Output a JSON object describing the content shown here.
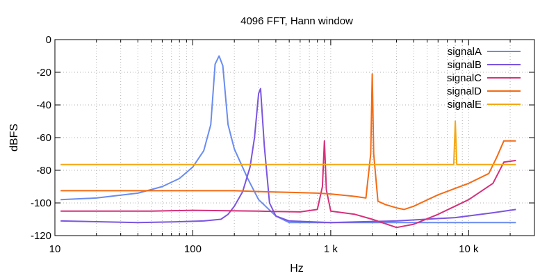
{
  "chart_data": {
    "type": "line",
    "title": "4096 FFT, Hann window",
    "xlabel": "Hz",
    "ylabel": "dBFS",
    "xscale": "log",
    "xlim": [
      10,
      30000
    ],
    "ylim": [
      -120,
      0
    ],
    "xticks": [
      {
        "value": 10,
        "label": "10"
      },
      {
        "value": 100,
        "label": "100"
      },
      {
        "value": 1000,
        "label": "1 k"
      },
      {
        "value": 10000,
        "label": "10 k"
      }
    ],
    "yticks": [
      {
        "value": 0,
        "label": "0"
      },
      {
        "value": -20,
        "label": "-20"
      },
      {
        "value": -40,
        "label": "-40"
      },
      {
        "value": -60,
        "label": "-60"
      },
      {
        "value": -80,
        "label": "-80"
      },
      {
        "value": -100,
        "label": "-100"
      },
      {
        "value": -120,
        "label": "-120"
      }
    ],
    "grid": true,
    "legend_position": "top-right",
    "series": [
      {
        "name": "signalA",
        "color": "#6a8cf0",
        "x": [
          11,
          20,
          40,
          60,
          80,
          100,
          120,
          135,
          145,
          155,
          165,
          180,
          200,
          250,
          300,
          400,
          500,
          1000,
          3000,
          10000,
          22000
        ],
        "y": [
          -98,
          -97,
          -94,
          -90,
          -85,
          -78,
          -68,
          -52,
          -15,
          -10,
          -16,
          -52,
          -67,
          -85,
          -98,
          -108,
          -112,
          -112,
          -112,
          -112,
          -112
        ]
      },
      {
        "name": "signalB",
        "color": "#7b55e0",
        "x": [
          11,
          20,
          40,
          80,
          120,
          160,
          180,
          200,
          230,
          260,
          280,
          300,
          310,
          330,
          360,
          400,
          500,
          1000,
          3000,
          8000,
          15000,
          22000
        ],
        "y": [
          -111,
          -111.5,
          -112,
          -111.5,
          -111,
          -110,
          -107,
          -102,
          -93,
          -78,
          -60,
          -33,
          -30,
          -65,
          -100,
          -108,
          -111,
          -112,
          -111,
          -109,
          -106,
          -104
        ]
      },
      {
        "name": "signalC",
        "color": "#d6307a",
        "x": [
          11,
          50,
          100,
          300,
          600,
          800,
          870,
          900,
          930,
          1000,
          1500,
          2000,
          3000,
          4000,
          6000,
          10000,
          15000,
          18000,
          22000
        ],
        "y": [
          -105,
          -105,
          -104.5,
          -105,
          -105.5,
          -104,
          -90,
          -62,
          -92,
          -105,
          -107,
          -110,
          -115,
          -113,
          -107,
          -98,
          -88,
          -75,
          -74
        ]
      },
      {
        "name": "signalD",
        "color": "#f46b14",
        "x": [
          11,
          50,
          100,
          200,
          300,
          500,
          800,
          1000,
          1500,
          1800,
          1950,
          2000,
          2050,
          2200,
          2500,
          3000,
          3400,
          4000,
          6000,
          10000,
          14000,
          16000,
          18000,
          22000
        ],
        "y": [
          -92.5,
          -92.5,
          -92.5,
          -92.5,
          -93,
          -93.5,
          -94,
          -94.5,
          -96,
          -97,
          -70,
          -21,
          -70,
          -99,
          -101,
          -103,
          -104,
          -102,
          -95,
          -88,
          -82,
          -72,
          -62,
          -62
        ]
      },
      {
        "name": "signalE",
        "color": "#f4a714",
        "x": [
          11,
          100,
          1000,
          5000,
          7800,
          8000,
          8200,
          10000,
          22000
        ],
        "y": [
          -76.5,
          -76.5,
          -76.5,
          -76.5,
          -76.5,
          -50,
          -76.5,
          -76.5,
          -76.5
        ]
      }
    ]
  }
}
